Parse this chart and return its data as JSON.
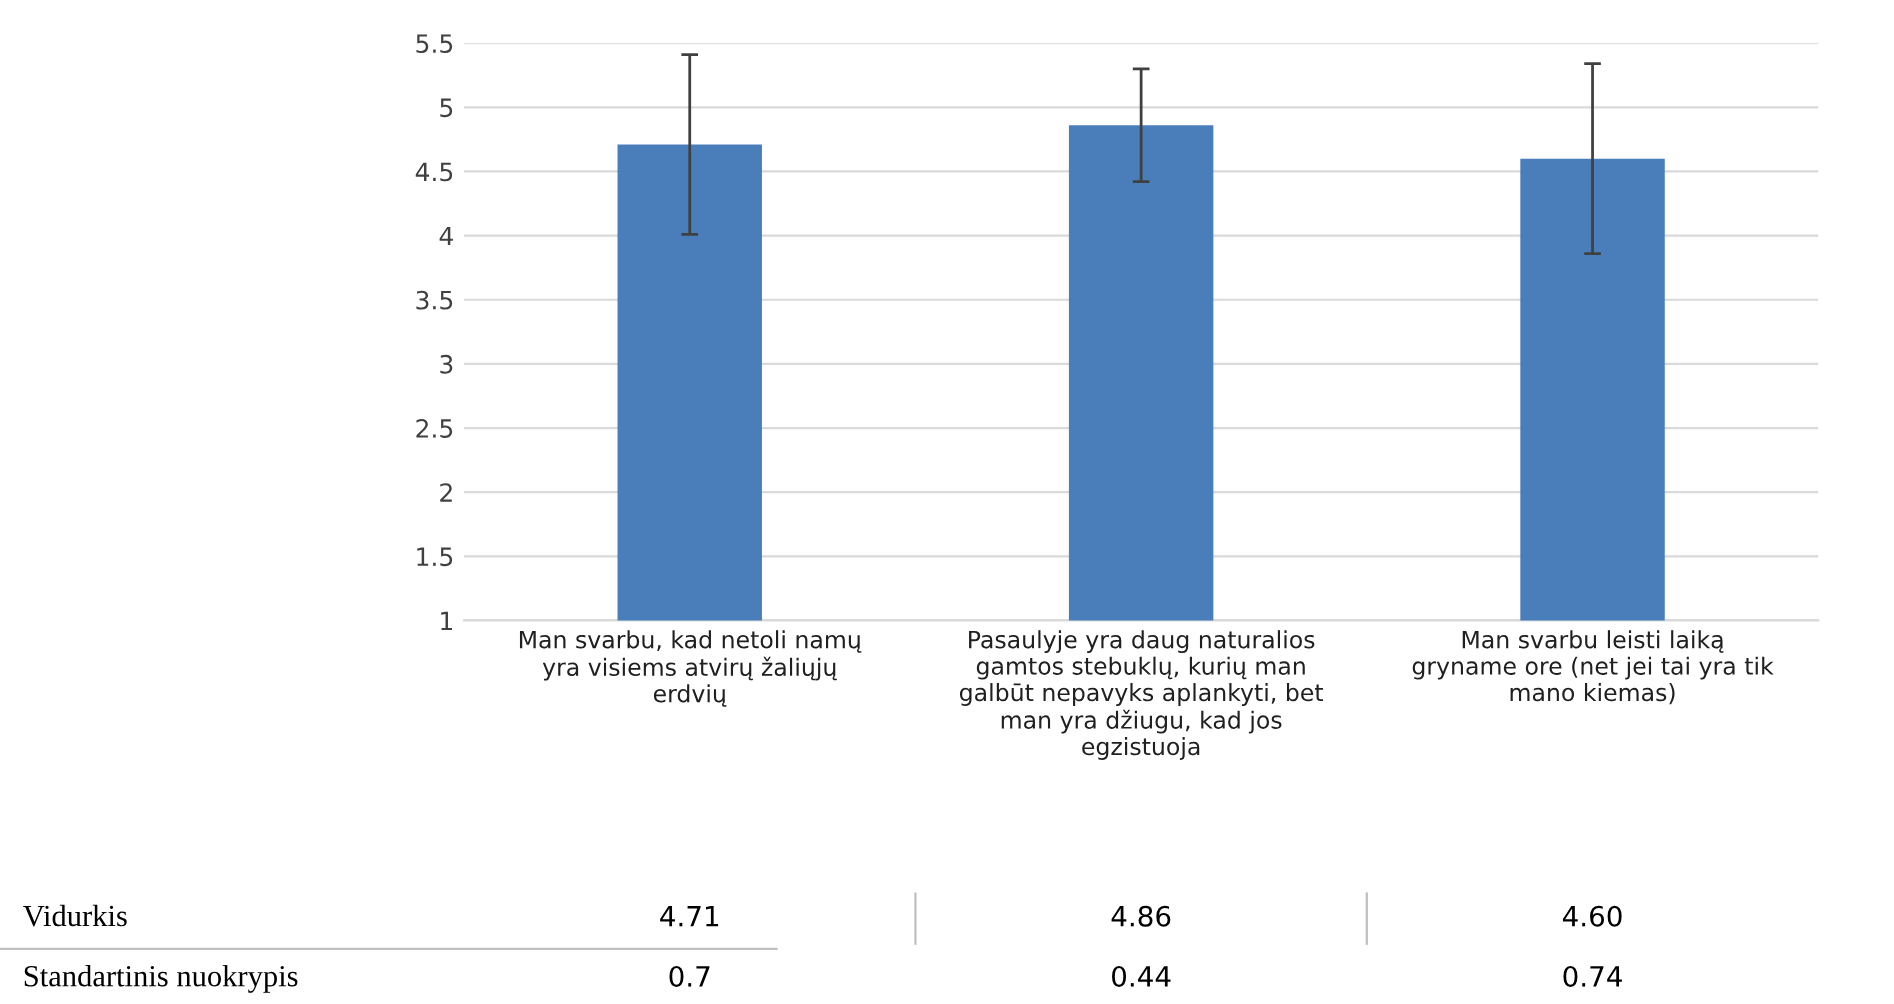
{
  "chart_data": {
    "type": "bar",
    "categories": [
      "Man svarbu, kad netoli namų\nyra visiems atvirų žaliųjų\nerdvių",
      "Pasaulyje yra daug naturalios\ngamtos stebuklų, kurių man\ngalbūt nepavyks aplankyti, bet\nman yra džiugu, kad jos\negzistuoja",
      "Man svarbu leisti laiką\ngryname ore (net jei tai yra tik\nmano kiemas)"
    ],
    "values": [
      4.71,
      4.86,
      4.6
    ],
    "value_labels": [
      "4.71",
      "4.86",
      "4.60"
    ],
    "errors": [
      0.7,
      0.44,
      0.74
    ],
    "color": "#4a7ebb",
    "ylim": [
      1,
      5.5
    ],
    "yticks": [
      1,
      1.5,
      2,
      2.5,
      3,
      3.5,
      4,
      4.5,
      5,
      5.5
    ],
    "grid": "y",
    "annotations": [
      "Vidurkis",
      "Standartinis nuokrypis",
      "0.7",
      "0.44",
      "0.74"
    ]
  }
}
